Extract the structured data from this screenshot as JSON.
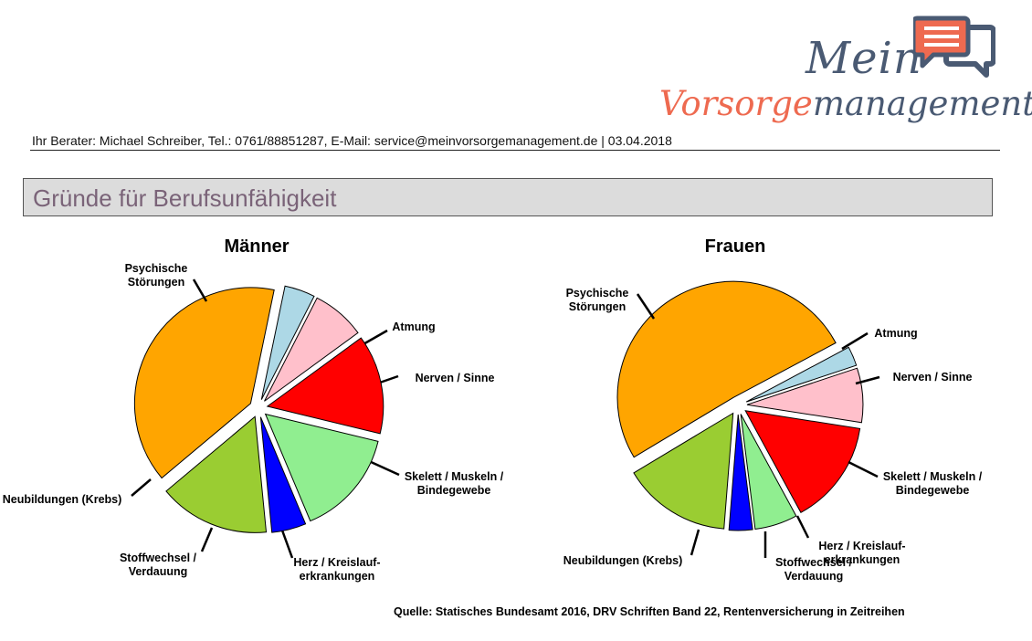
{
  "logo": {
    "line1": "Mein",
    "line2_part1": "Vorsorge",
    "line2_part2": "management",
    "icon": "chat-bubbles-icon",
    "colors": {
      "accent": "#ee6a50",
      "dark": "#4a5a73"
    }
  },
  "header": {
    "advisor_line": "Ihr Berater: Michael Schreiber, Tel.: 0761/88851287, E-Mail: service@meinvorsorgemanagement.de | 03.04.2018"
  },
  "section": {
    "title": "Gründe für Berufsunfähigkeit"
  },
  "chart_data": [
    {
      "type": "pie",
      "title": "Männer",
      "exploded": true,
      "slices": [
        {
          "label": [
            "Psychische",
            "Störungen"
          ],
          "value": 37.0,
          "color": "#ffa500"
        },
        {
          "label": [
            "Atmung"
          ],
          "value": 4.0,
          "color": "#add8e6"
        },
        {
          "label": [
            "Nerven  / Sinne"
          ],
          "value": 7.0,
          "color": "#ffc0cb"
        },
        {
          "label": [
            "Skelett / Muskeln /",
            "Bindegewebe"
          ],
          "value": 13.0,
          "color": "#ff0000"
        },
        {
          "label": [
            "Herz / Kreislauf-",
            "erkrankungen"
          ],
          "value": 14.0,
          "color": "#90ee90"
        },
        {
          "label": [
            "Stoffwechsel /",
            "Verdauung"
          ],
          "value": 4.5,
          "color": "#0000ff"
        },
        {
          "label": [
            "Neubildungen (Krebs)"
          ],
          "value": 14.5,
          "color": "#9acd32"
        }
      ]
    },
    {
      "type": "pie",
      "title": "Frauen",
      "exploded": true,
      "slices": [
        {
          "label": [
            "Psychische",
            "Störungen"
          ],
          "value": 47.0,
          "color": "#ffa500"
        },
        {
          "label": [
            "Atmung"
          ],
          "value": 2.5,
          "color": "#add8e6"
        },
        {
          "label": [
            "Nerven / Sinne"
          ],
          "value": 7.0,
          "color": "#ffc0cb"
        },
        {
          "label": [
            "Skelett / Muskeln /",
            "Bindegewebe"
          ],
          "value": 13.5,
          "color": "#ff0000"
        },
        {
          "label": [
            "Herz / Kreislauf-",
            "erkrankungen"
          ],
          "value": 5.5,
          "color": "#90ee90"
        },
        {
          "label": [
            "Stoffwechsel /",
            "Verdauung"
          ],
          "value": 3.0,
          "color": "#0000ff"
        },
        {
          "label": [
            "Neubildungen (Krebs)"
          ],
          "value": 14.0,
          "color": "#9acd32"
        }
      ]
    }
  ],
  "source": "Quelle: Statisches Bundesamt 2016, DRV Schriften Band 22, Rentenversicherung in Zeitreihen"
}
